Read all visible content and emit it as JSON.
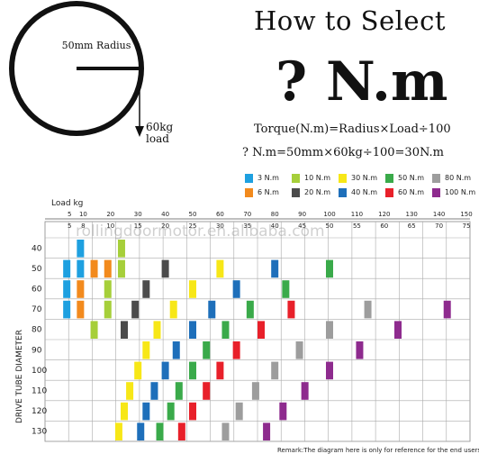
{
  "header": {
    "title": "How to Select",
    "big_text": "? N.m",
    "formula_general": "Torque(N.m)=Radius×Load÷100",
    "formula_example": "? N.m=50mm×60kg÷100=30N.m"
  },
  "wheel": {
    "radius_label": "50mm Radius",
    "load_label": "60kg load"
  },
  "legend": [
    {
      "label": "3 N.m",
      "color": "#1ea0e0"
    },
    {
      "label": "10 N.m",
      "color": "#a6cf3a"
    },
    {
      "label": "30 N.m",
      "color": "#f7e717"
    },
    {
      "label": "50 N.m",
      "color": "#3aaa4a"
    },
    {
      "label": "80 N.m",
      "color": "#9d9d9d"
    },
    {
      "label": "6 N.m",
      "color": "#f28a1d"
    },
    {
      "label": "20 N.m",
      "color": "#4b4b4b"
    },
    {
      "label": "40 N.m",
      "color": "#1e6fba"
    },
    {
      "label": "60 N.m",
      "color": "#e8202a"
    },
    {
      "label": "100 N.m",
      "color": "#8e2b8e"
    }
  ],
  "chart_data": {
    "type": "table",
    "x_axis_title": "Load kg",
    "y_axis_title": "DRIVE TUBE DIAMETER",
    "x_top_ticks": [
      "5",
      "10",
      "20",
      "30",
      "40",
      "50",
      "60",
      "70",
      "80",
      "90",
      "100",
      "110",
      "120",
      "130",
      "140",
      "150"
    ],
    "x_bottom_ticks": [
      "5",
      "8",
      "10",
      "15",
      "20",
      "25",
      "30",
      "35",
      "40",
      "45",
      "50",
      "55",
      "60",
      "65",
      "70",
      "75"
    ],
    "rows": [
      "40",
      "50",
      "60",
      "70",
      "80",
      "90",
      "100",
      "110",
      "120",
      "130"
    ],
    "blocks": [
      {
        "row": "40",
        "load": 9,
        "torque": "3 N.m"
      },
      {
        "row": "40",
        "load": 24,
        "torque": "10 N.m"
      },
      {
        "row": "50",
        "load": 4,
        "torque": "3 N.m"
      },
      {
        "row": "50",
        "load": 9,
        "torque": "3 N.m"
      },
      {
        "row": "50",
        "load": 14,
        "torque": "6 N.m"
      },
      {
        "row": "50",
        "load": 19,
        "torque": "6 N.m"
      },
      {
        "row": "50",
        "load": 24,
        "torque": "10 N.m"
      },
      {
        "row": "50",
        "load": 40,
        "torque": "20 N.m"
      },
      {
        "row": "50",
        "load": 60,
        "torque": "30 N.m"
      },
      {
        "row": "50",
        "load": 80,
        "torque": "40 N.m"
      },
      {
        "row": "50",
        "load": 100,
        "torque": "50 N.m"
      },
      {
        "row": "60",
        "load": 4,
        "torque": "3 N.m"
      },
      {
        "row": "60",
        "load": 9,
        "torque": "6 N.m"
      },
      {
        "row": "60",
        "load": 19,
        "torque": "10 N.m"
      },
      {
        "row": "60",
        "load": 33,
        "torque": "20 N.m"
      },
      {
        "row": "60",
        "load": 50,
        "torque": "30 N.m"
      },
      {
        "row": "60",
        "load": 66,
        "torque": "40 N.m"
      },
      {
        "row": "60",
        "load": 84,
        "torque": "50 N.m"
      },
      {
        "row": "70",
        "load": 4,
        "torque": "3 N.m"
      },
      {
        "row": "70",
        "load": 9,
        "torque": "6 N.m"
      },
      {
        "row": "70",
        "load": 19,
        "torque": "10 N.m"
      },
      {
        "row": "70",
        "load": 29,
        "torque": "20 N.m"
      },
      {
        "row": "70",
        "load": 43,
        "torque": "30 N.m"
      },
      {
        "row": "70",
        "load": 57,
        "torque": "40 N.m"
      },
      {
        "row": "70",
        "load": 71,
        "torque": "50 N.m"
      },
      {
        "row": "70",
        "load": 86,
        "torque": "60 N.m"
      },
      {
        "row": "70",
        "load": 114,
        "torque": "80 N.m"
      },
      {
        "row": "70",
        "load": 143,
        "torque": "100 N.m"
      },
      {
        "row": "80",
        "load": 14,
        "torque": "10 N.m"
      },
      {
        "row": "80",
        "load": 25,
        "torque": "20 N.m"
      },
      {
        "row": "80",
        "load": 37,
        "torque": "30 N.m"
      },
      {
        "row": "80",
        "load": 50,
        "torque": "40 N.m"
      },
      {
        "row": "80",
        "load": 62,
        "torque": "50 N.m"
      },
      {
        "row": "80",
        "load": 75,
        "torque": "60 N.m"
      },
      {
        "row": "80",
        "load": 100,
        "torque": "80 N.m"
      },
      {
        "row": "80",
        "load": 125,
        "torque": "100 N.m"
      },
      {
        "row": "90",
        "load": 33,
        "torque": "30 N.m"
      },
      {
        "row": "90",
        "load": 44,
        "torque": "40 N.m"
      },
      {
        "row": "90",
        "load": 55,
        "torque": "50 N.m"
      },
      {
        "row": "90",
        "load": 66,
        "torque": "60 N.m"
      },
      {
        "row": "90",
        "load": 89,
        "torque": "80 N.m"
      },
      {
        "row": "90",
        "load": 111,
        "torque": "100 N.m"
      },
      {
        "row": "100",
        "load": 30,
        "torque": "30 N.m"
      },
      {
        "row": "100",
        "load": 40,
        "torque": "40 N.m"
      },
      {
        "row": "100",
        "load": 50,
        "torque": "50 N.m"
      },
      {
        "row": "100",
        "load": 60,
        "torque": "60 N.m"
      },
      {
        "row": "100",
        "load": 80,
        "torque": "80 N.m"
      },
      {
        "row": "100",
        "load": 100,
        "torque": "100 N.m"
      },
      {
        "row": "110",
        "load": 27,
        "torque": "30 N.m"
      },
      {
        "row": "110",
        "load": 36,
        "torque": "40 N.m"
      },
      {
        "row": "110",
        "load": 45,
        "torque": "50 N.m"
      },
      {
        "row": "110",
        "load": 55,
        "torque": "60 N.m"
      },
      {
        "row": "110",
        "load": 73,
        "torque": "80 N.m"
      },
      {
        "row": "110",
        "load": 91,
        "torque": "100 N.m"
      },
      {
        "row": "120",
        "load": 25,
        "torque": "30 N.m"
      },
      {
        "row": "120",
        "load": 33,
        "torque": "40 N.m"
      },
      {
        "row": "120",
        "load": 42,
        "torque": "50 N.m"
      },
      {
        "row": "120",
        "load": 50,
        "torque": "60 N.m"
      },
      {
        "row": "120",
        "load": 67,
        "torque": "80 N.m"
      },
      {
        "row": "120",
        "load": 83,
        "torque": "100 N.m"
      },
      {
        "row": "130",
        "load": 23,
        "torque": "30 N.m"
      },
      {
        "row": "130",
        "load": 31,
        "torque": "40 N.m"
      },
      {
        "row": "130",
        "load": 38,
        "torque": "50 N.m"
      },
      {
        "row": "130",
        "load": 46,
        "torque": "60 N.m"
      },
      {
        "row": "130",
        "load": 62,
        "torque": "80 N.m"
      },
      {
        "row": "130",
        "load": 77,
        "torque": "100 N.m"
      }
    ],
    "remark": "Remark:The diagram here is only for reference for the end users"
  },
  "watermark": "rollingdoormotor.en.alibaba.com"
}
